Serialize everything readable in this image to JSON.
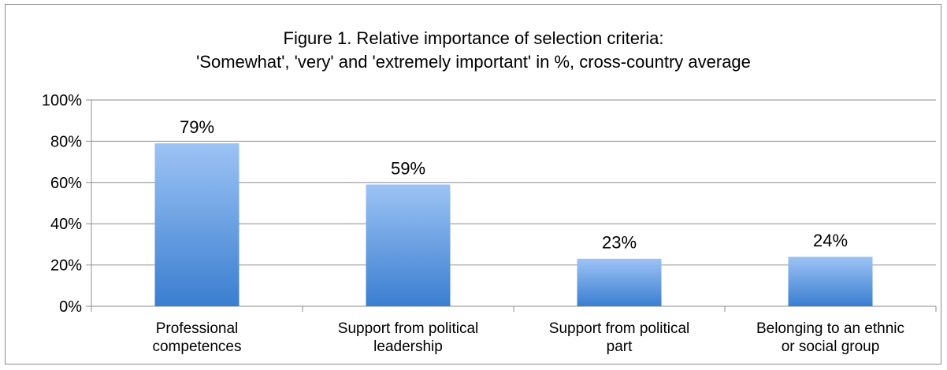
{
  "chart_data": {
    "type": "bar",
    "title_lines": [
      "Figure 1. Relative importance of selection criteria:",
      "'Somewhat', 'very' and 'extremely important' in %, cross-country average"
    ],
    "categories": [
      [
        "Professional",
        "competences"
      ],
      [
        "Support from political",
        "leadership"
      ],
      [
        "Support from political",
        "part"
      ],
      [
        "Belonging to an ethnic",
        "or social group"
      ]
    ],
    "values": [
      79,
      59,
      23,
      24
    ],
    "data_labels": [
      "79%",
      "59%",
      "23%",
      "24%"
    ],
    "y_ticks": [
      0,
      20,
      40,
      60,
      80,
      100
    ],
    "y_tick_labels": [
      "0%",
      "20%",
      "40%",
      "60%",
      "80%",
      "100%"
    ],
    "ylim": [
      0,
      100
    ],
    "grid": true,
    "bar_color_top": "#9DC3F5",
    "bar_color_bottom": "#3A7ED0",
    "grid_color": "#8c8c8c"
  }
}
